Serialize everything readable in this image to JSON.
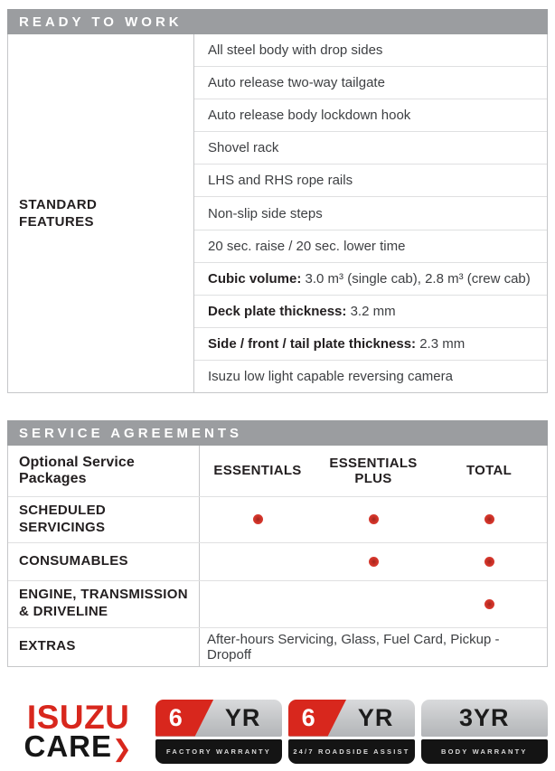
{
  "colors": {
    "header_bar_gray": "#9b9da0",
    "isuzu_red": "#d8271d",
    "dot_red": "#cf3228",
    "table_border": "#c6c7c9",
    "row_separator": "#dfe0e1",
    "text_dark": "#231f20",
    "badge_silver": "#c3c5c7",
    "badge_black": "#141414"
  },
  "ready_to_work": {
    "title": "READY TO WORK",
    "row_header": "STANDARD FEATURES",
    "features": [
      {
        "bold": "",
        "text": "All steel body with drop sides"
      },
      {
        "bold": "",
        "text": "Auto release two-way tailgate"
      },
      {
        "bold": "",
        "text": "Auto release body lockdown hook"
      },
      {
        "bold": "",
        "text": "Shovel rack"
      },
      {
        "bold": "",
        "text": "LHS and RHS rope rails"
      },
      {
        "bold": "",
        "text": "Non-slip side steps"
      },
      {
        "bold": "",
        "text": "20 sec. raise / 20 sec. lower time"
      },
      {
        "bold": "Cubic volume:",
        "text": " 3.0 m³ (single cab), 2.8 m³ (crew cab)"
      },
      {
        "bold": "Deck plate thickness:",
        "text": " 3.2 mm"
      },
      {
        "bold": "Side / front / tail plate thickness:",
        "text": " 2.3 mm"
      },
      {
        "bold": "",
        "text": "Isuzu low light capable reversing camera"
      }
    ]
  },
  "service_agreements": {
    "title": "SERVICE AGREEMENTS",
    "corner_header": "Optional Service Packages",
    "columns": [
      "ESSENTIALS",
      "ESSENTIALS PLUS",
      "TOTAL"
    ],
    "rows": [
      {
        "label": "SCHEDULED SERVICINGS",
        "dots": [
          true,
          true,
          true
        ]
      },
      {
        "label": "CONSUMABLES",
        "dots": [
          false,
          true,
          true
        ]
      },
      {
        "label": "ENGINE, TRANSMISSION & DRIVELINE",
        "dots": [
          false,
          false,
          true
        ]
      }
    ],
    "extras": {
      "label": "EXTRAS",
      "value": "After-hours Servicing, Glass, Fuel Card, Pickup - Dropoff"
    }
  },
  "footer": {
    "isuzu_care": {
      "line1": "ISUZU",
      "line2": "CARE",
      "chevron_icon": "❯"
    },
    "badges": [
      {
        "digit": "6",
        "suffix": "YR",
        "caption": "FACTORY WARRANTY"
      },
      {
        "digit": "6",
        "suffix": "YR",
        "caption": "24/7 ROADSIDE ASSIST"
      },
      {
        "digit": "3",
        "suffix": "YR",
        "caption": "BODY WARRANTY"
      }
    ]
  }
}
